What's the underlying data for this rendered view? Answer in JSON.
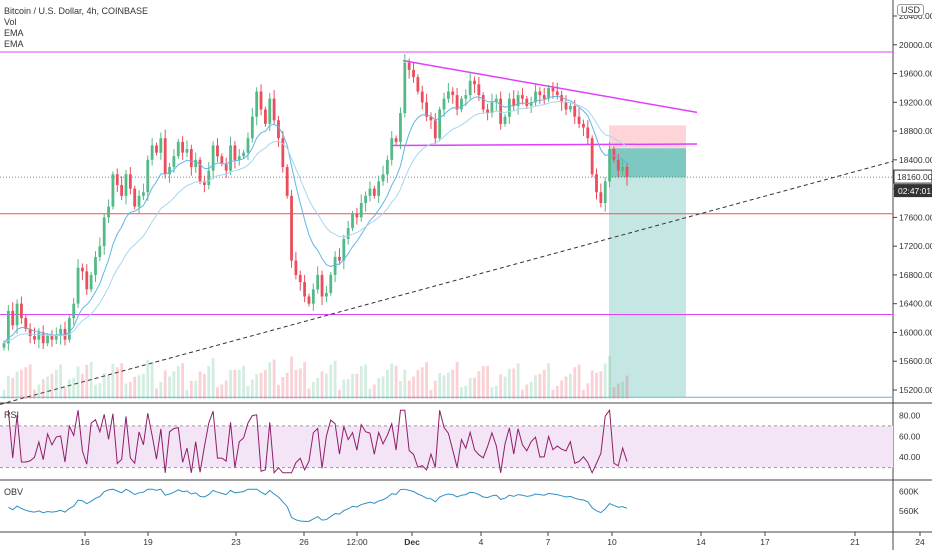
{
  "header": {
    "symbol_line": "Bitcoin / U.S. Dollar, 4h, COINBASE",
    "indicators": [
      "Vol",
      "EMA",
      "EMA"
    ],
    "currency_badge": "USD"
  },
  "price_axis": {
    "ticks": [
      "20400.00",
      "20000.00",
      "19600.00",
      "19200.00",
      "18800.00",
      "18400.00",
      "18000.00",
      "17600.00",
      "17200.00",
      "16800.00",
      "16400.00",
      "16000.00",
      "15600.00",
      "15200.00"
    ],
    "current_price": "18160.00",
    "countdown": "02:47:01"
  },
  "time_axis": {
    "ticks": [
      "16",
      "19",
      "23",
      "26",
      "12:00",
      "Dec",
      "4",
      "7",
      "10",
      "14",
      "17",
      "21",
      "24"
    ]
  },
  "rsi_pane": {
    "label": "RSI",
    "ticks": [
      "80.00",
      "60.00",
      "40.00"
    ]
  },
  "obv_pane": {
    "label": "OBV",
    "ticks": [
      "600K",
      "560K"
    ]
  },
  "colors": {
    "bull": "#53b987",
    "bear": "#eb4d5c",
    "magenta_line": "#e040fb",
    "horizontal_red": "#ef5350",
    "ema_blue": "#5fb7e5",
    "rsi_line": "#8e1e6b",
    "rsi_band": "#f3e5f5",
    "obv_line": "#2f8fc4",
    "target_zone": "#b2dfdb",
    "stop_zone": "#ffcdd2"
  },
  "chart_data": {
    "type": "candlestick",
    "title": "Bitcoin / U.S. Dollar, 4h, COINBASE",
    "ylim": [
      15000,
      20500
    ],
    "current_price": 18160,
    "horizontal_levels": [
      19900,
      17650,
      16250,
      15100
    ],
    "descending_trendline": {
      "start": {
        "x": "Nov 30",
        "y": 19750
      },
      "end": {
        "x": "Dec 13",
        "y": 19050
      }
    },
    "neckline": {
      "y": 18620
    },
    "ascending_trendline": {
      "start": {
        "x": "Nov 13",
        "y": 15250
      },
      "end": {
        "x": "Dec 24",
        "y": 18380
      }
    },
    "position_tool": {
      "entry": 18560,
      "stop": 18880,
      "target": 15100
    },
    "closes": [
      15850,
      16300,
      16100,
      16400,
      16200,
      16050,
      15950,
      15900,
      16000,
      15850,
      15950,
      15900,
      15950,
      16050,
      15900,
      16200,
      16400,
      16900,
      16850,
      16600,
      16800,
      17050,
      17200,
      17600,
      17750,
      18200,
      18050,
      17900,
      18200,
      18000,
      17750,
      17900,
      17950,
      18400,
      18600,
      18500,
      18700,
      18200,
      18300,
      18450,
      18650,
      18500,
      18550,
      18300,
      18400,
      18100,
      18050,
      18250,
      18600,
      18450,
      18350,
      18250,
      18600,
      18400,
      18450,
      18500,
      18700,
      19000,
      19350,
      19100,
      18900,
      19250,
      18950,
      18700,
      18300,
      17900,
      17000,
      16800,
      16700,
      16500,
      16400,
      16600,
      16800,
      16500,
      16550,
      16800,
      17050,
      17000,
      17300,
      17450,
      17650,
      17600,
      17800,
      17900,
      18000,
      17900,
      18100,
      18200,
      18400,
      18700,
      18650,
      19050,
      19750,
      19650,
      19550,
      19350,
      19200,
      19000,
      18950,
      18700,
      19100,
      19250,
      19350,
      19300,
      19100,
      19250,
      19300,
      19500,
      19450,
      19300,
      19100,
      19050,
      19200,
      19250,
      18900,
      19000,
      19250,
      19150,
      19300,
      19250,
      19150,
      19200,
      19350,
      19300,
      19250,
      19400,
      19350,
      19300,
      19200,
      19100,
      19150,
      19000,
      18900,
      18850,
      18700,
      18200,
      17950,
      17800,
      18100,
      18550,
      18400,
      18250,
      18300,
      18160
    ],
    "rsi": {
      "ylim": [
        20,
        90
      ],
      "band": [
        30,
        70
      ]
    },
    "obv": {
      "ylim": [
        520,
        620
      ],
      "unit": "K"
    }
  }
}
